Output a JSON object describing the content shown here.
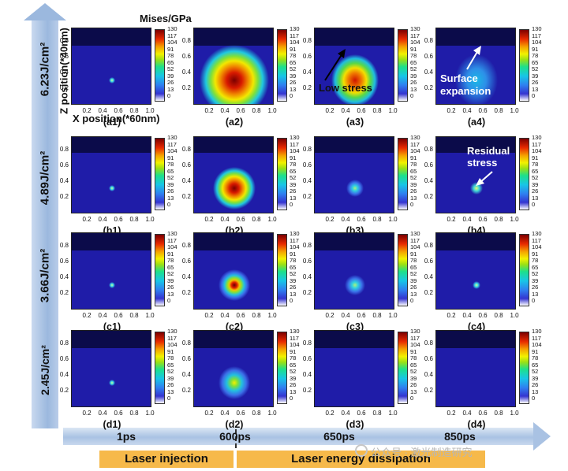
{
  "figure": {
    "colorbar_title": "Mises/GPa",
    "z_axis_label": "Z position(*40nm)",
    "x_axis_label": "X position(*60nm)",
    "colorbar_ticks": [
      "130",
      "117",
      "104",
      "91",
      "78",
      "65",
      "52",
      "39",
      "26",
      "13",
      "0"
    ],
    "x_ticks": [
      "0.2",
      "0.4",
      "0.6",
      "0.8",
      "1.0"
    ],
    "y_ticks": [
      "0.8",
      "0.6",
      "0.4",
      "0.2"
    ]
  },
  "fluences": [
    "6.23J/cm²",
    "4.89J/cm²",
    "3.66J/cm²",
    "2.45J/cm²"
  ],
  "times": [
    "1ps",
    "600ps",
    "650ps",
    "850ps"
  ],
  "phases": {
    "injection": "Laser injection",
    "dissipation": "Laser energy dissipation"
  },
  "panel_labels": [
    [
      "(a1)",
      "(a2)",
      "(a3)",
      "(a4)"
    ],
    [
      "(b1)",
      "(b2)",
      "(b3)",
      "(b4)"
    ],
    [
      "(c1)",
      "(c2)",
      "(c3)",
      "(c4)"
    ],
    [
      "(d1)",
      "(d2)",
      "(d3)",
      "(d4)"
    ]
  ],
  "annotations": {
    "low_stress": "Low stress",
    "surface_expansion": "Surface expansion",
    "residual_stress": "Residual stress"
  },
  "watermark": "公众号 · 激光制造研究"
}
